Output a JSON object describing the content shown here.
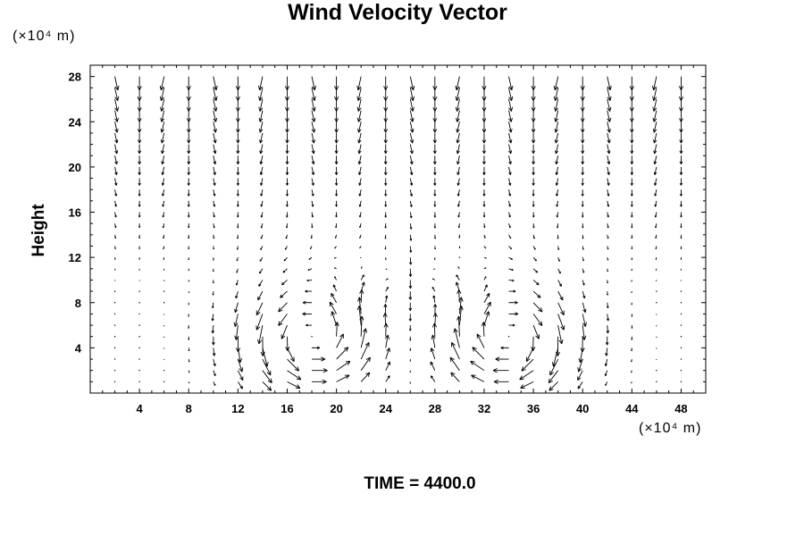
{
  "chart_data": {
    "type": "vector-field",
    "title": "Wind Velocity Vector",
    "xlabel": "",
    "ylabel": "Height",
    "x_unit": "(×10⁴ m)",
    "y_unit": "(×10⁴ m)",
    "xlim": [
      0,
      50
    ],
    "ylim": [
      0,
      29
    ],
    "x_ticks": [
      4,
      8,
      12,
      16,
      20,
      24,
      28,
      32,
      36,
      40,
      44,
      48
    ],
    "y_ticks": [
      4,
      8,
      12,
      16,
      20,
      24,
      28
    ],
    "grid_x_spacing": 2,
    "grid_y_spacing": 2,
    "description": "Two symmetric circulation cells centered near x=18 and x=34, low level; strong downdraft near x=26.",
    "footer": "TIME = 4400.0"
  }
}
